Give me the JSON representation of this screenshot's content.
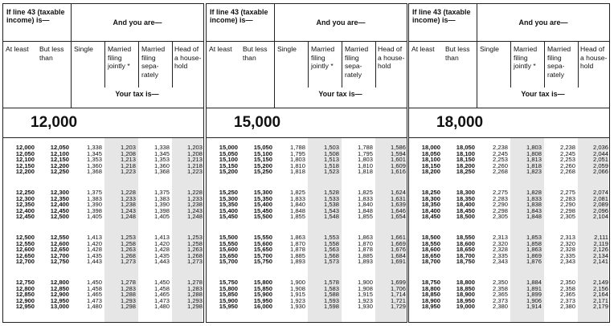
{
  "header": {
    "income_label": "If line 43 (taxable income) is—",
    "and_you_are": "And you are—",
    "at_least": "At least",
    "but_less_than": "But less than",
    "single": "Single",
    "mfj": "Married filing jointly *",
    "mfs": "Married filing sepa-rately",
    "hoh": "Head of a house-hold",
    "your_tax_is": "Your tax is—"
  },
  "shade_color": "#e6e6e6",
  "panels": [
    {
      "title": "12,000",
      "rows": [
        [
          "12,000",
          "12,050",
          "1,338",
          "1,203",
          "1,338",
          "1,203"
        ],
        [
          "12,050",
          "12,100",
          "1,345",
          "1,208",
          "1,345",
          "1,208"
        ],
        [
          "12,100",
          "12,150",
          "1,353",
          "1,213",
          "1,353",
          "1,213"
        ],
        [
          "12,150",
          "12,200",
          "1,360",
          "1,218",
          "1,360",
          "1,218"
        ],
        [
          "12,200",
          "12,250",
          "1,368",
          "1,223",
          "1,368",
          "1,223"
        ],
        [
          "12,250",
          "12,300",
          "1,375",
          "1,228",
          "1,375",
          "1,228"
        ],
        [
          "12,300",
          "12,350",
          "1,383",
          "1,233",
          "1,383",
          "1,233"
        ],
        [
          "12,350",
          "12,400",
          "1,390",
          "1,238",
          "1,390",
          "1,238"
        ],
        [
          "12,400",
          "12,450",
          "1,398",
          "1,243",
          "1,398",
          "1,243"
        ],
        [
          "12,450",
          "12,500",
          "1,405",
          "1,248",
          "1,405",
          "1,248"
        ],
        [
          "12,500",
          "12,550",
          "1,413",
          "1,253",
          "1,413",
          "1,253"
        ],
        [
          "12,550",
          "12,600",
          "1,420",
          "1,258",
          "1,420",
          "1,258"
        ],
        [
          "12,600",
          "12,650",
          "1,428",
          "1,263",
          "1,428",
          "1,263"
        ],
        [
          "12,650",
          "12,700",
          "1,435",
          "1,268",
          "1,435",
          "1,268"
        ],
        [
          "12,700",
          "12,750",
          "1,443",
          "1,273",
          "1,443",
          "1,273"
        ],
        [
          "12,750",
          "12,800",
          "1,450",
          "1,278",
          "1,450",
          "1,278"
        ],
        [
          "12,800",
          "12,850",
          "1,458",
          "1,283",
          "1,458",
          "1,283"
        ],
        [
          "12,850",
          "12,900",
          "1,465",
          "1,288",
          "1,465",
          "1,288"
        ],
        [
          "12,900",
          "12,950",
          "1,473",
          "1,293",
          "1,473",
          "1,293"
        ],
        [
          "12,950",
          "13,000",
          "1,480",
          "1,298",
          "1,480",
          "1,298"
        ]
      ]
    },
    {
      "title": "15,000",
      "rows": [
        [
          "15,000",
          "15,050",
          "1,788",
          "1,503",
          "1,788",
          "1,586"
        ],
        [
          "15,050",
          "15,100",
          "1,795",
          "1,508",
          "1,795",
          "1,594"
        ],
        [
          "15,100",
          "15,150",
          "1,803",
          "1,513",
          "1,803",
          "1,601"
        ],
        [
          "15,150",
          "15,200",
          "1,810",
          "1,518",
          "1,810",
          "1,609"
        ],
        [
          "15,200",
          "15,250",
          "1,818",
          "1,523",
          "1,818",
          "1,616"
        ],
        [
          "15,250",
          "15,300",
          "1,825",
          "1,528",
          "1,825",
          "1,624"
        ],
        [
          "15,300",
          "15,350",
          "1,833",
          "1,533",
          "1,833",
          "1,631"
        ],
        [
          "15,350",
          "15,400",
          "1,840",
          "1,538",
          "1,840",
          "1,639"
        ],
        [
          "15,400",
          "15,450",
          "1,848",
          "1,543",
          "1,848",
          "1,646"
        ],
        [
          "15,450",
          "15,500",
          "1,855",
          "1,548",
          "1,855",
          "1,654"
        ],
        [
          "15,500",
          "15,550",
          "1,863",
          "1,553",
          "1,863",
          "1,661"
        ],
        [
          "15,550",
          "15,600",
          "1,870",
          "1,558",
          "1,870",
          "1,669"
        ],
        [
          "15,600",
          "15,650",
          "1,878",
          "1,563",
          "1,878",
          "1,676"
        ],
        [
          "15,650",
          "15,700",
          "1,885",
          "1,568",
          "1,885",
          "1,684"
        ],
        [
          "15,700",
          "15,750",
          "1,893",
          "1,573",
          "1,893",
          "1,691"
        ],
        [
          "15,750",
          "15,800",
          "1,900",
          "1,578",
          "1,900",
          "1,699"
        ],
        [
          "15,800",
          "15,850",
          "1,908",
          "1,583",
          "1,908",
          "1,706"
        ],
        [
          "15,850",
          "15,900",
          "1,915",
          "1,588",
          "1,915",
          "1,714"
        ],
        [
          "15,900",
          "15,950",
          "1,923",
          "1,593",
          "1,923",
          "1,721"
        ],
        [
          "15,950",
          "16,000",
          "1,930",
          "1,598",
          "1,930",
          "1,729"
        ]
      ]
    },
    {
      "title": "18,000",
      "rows": [
        [
          "18,000",
          "18,050",
          "2,238",
          "1,803",
          "2,238",
          "2,036"
        ],
        [
          "18,050",
          "18,100",
          "2,245",
          "1,808",
          "2,245",
          "2,044"
        ],
        [
          "18,100",
          "18,150",
          "2,253",
          "1,813",
          "2,253",
          "2,051"
        ],
        [
          "18,150",
          "18,200",
          "2,260",
          "1,818",
          "2,260",
          "2,059"
        ],
        [
          "18,200",
          "18,250",
          "2,268",
          "1,823",
          "2,268",
          "2,066"
        ],
        [
          "18,250",
          "18,300",
          "2,275",
          "1,828",
          "2,275",
          "2,074"
        ],
        [
          "18,300",
          "18,350",
          "2,283",
          "1,833",
          "2,283",
          "2,081"
        ],
        [
          "18,350",
          "18,400",
          "2,290",
          "1,838",
          "2,290",
          "2,089"
        ],
        [
          "18,400",
          "18,450",
          "2,298",
          "1,843",
          "2,298",
          "2,096"
        ],
        [
          "18,450",
          "18,500",
          "2,305",
          "1,848",
          "2,305",
          "2,104"
        ],
        [
          "18,500",
          "18,550",
          "2,313",
          "1,853",
          "2,313",
          "2,111"
        ],
        [
          "18,550",
          "18,600",
          "2,320",
          "1,858",
          "2,320",
          "2,119"
        ],
        [
          "18,600",
          "18,650",
          "2,328",
          "1,863",
          "2,328",
          "2,126"
        ],
        [
          "18,650",
          "18,700",
          "2,335",
          "1,869",
          "2,335",
          "2,134"
        ],
        [
          "18,700",
          "18,750",
          "2,343",
          "1,876",
          "2,343",
          "2,141"
        ],
        [
          "18,750",
          "18,800",
          "2,350",
          "1,884",
          "2,350",
          "2,149"
        ],
        [
          "18,800",
          "18,850",
          "2,358",
          "1,891",
          "2,358",
          "2,156"
        ],
        [
          "18,850",
          "18,900",
          "2,365",
          "1,899",
          "2,365",
          "2,164"
        ],
        [
          "18,900",
          "18,950",
          "2,373",
          "1,906",
          "2,373",
          "2,171"
        ],
        [
          "18,950",
          "19,000",
          "2,380",
          "1,914",
          "2,380",
          "2,179"
        ]
      ]
    }
  ]
}
